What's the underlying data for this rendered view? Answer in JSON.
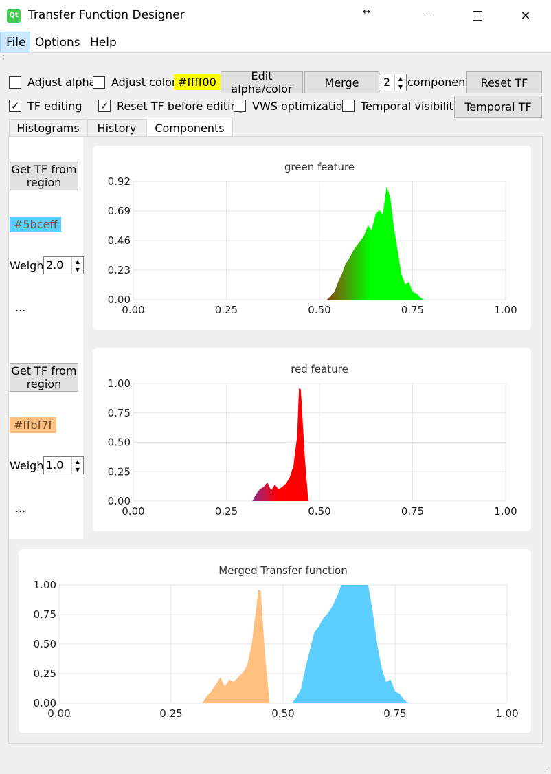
{
  "window": {
    "title": "Transfer Function Designer",
    "app_icon": "Qt",
    "resize_icon": "↔"
  },
  "menu": {
    "file": "File",
    "options": "Options",
    "help": "Help"
  },
  "toolbar": {
    "adjust_alpha": "Adjust alpha",
    "adjust_color": "Adjust color",
    "color_value": "#ffff00",
    "color_label": "#ffff00",
    "edit_btn": "Edit alpha/color",
    "merge_btn": "Merge",
    "components_value": "2",
    "components_label": "components",
    "reset_btn": "Reset TF",
    "tf_editing": "TF editing",
    "reset_before": "Reset TF before editing",
    "vws": "VWS optimization",
    "temporal_vis": "Temporal visibility",
    "temporal_btn": "Temporal TF"
  },
  "tabs": [
    "Histograms",
    "History",
    "Components"
  ],
  "components": [
    {
      "get_btn": "Get TF from region",
      "color": "#5bceff",
      "color_label": "#5bceff",
      "weight_label": "Weight",
      "weight": "2.0",
      "more": "..."
    },
    {
      "get_btn": "Get TF from region",
      "color": "#ffbf7f",
      "color_label": "#ffbf7f",
      "weight_label": "Weight",
      "weight": "1.0",
      "more": "..."
    }
  ],
  "chart_data": [
    {
      "type": "area",
      "title": "green feature",
      "xlim": [
        0,
        1
      ],
      "ylim": [
        0,
        0.92
      ],
      "xticks": [
        "0.00",
        "0.25",
        "0.50",
        "0.75",
        "1.00"
      ],
      "yticks": [
        "0.00",
        "0.23",
        "0.46",
        "0.69",
        "0.92"
      ],
      "fill": "gradient",
      "colors": [
        "#8b4513",
        "#00ff00"
      ],
      "x": [
        0.52,
        0.53,
        0.54,
        0.55,
        0.56,
        0.57,
        0.58,
        0.59,
        0.6,
        0.61,
        0.62,
        0.63,
        0.64,
        0.65,
        0.66,
        0.67,
        0.68,
        0.69,
        0.7,
        0.71,
        0.72,
        0.73,
        0.74,
        0.75,
        0.76,
        0.77,
        0.78
      ],
      "y": [
        0.0,
        0.03,
        0.06,
        0.14,
        0.2,
        0.28,
        0.32,
        0.38,
        0.42,
        0.46,
        0.5,
        0.58,
        0.54,
        0.66,
        0.7,
        0.66,
        0.88,
        0.8,
        0.56,
        0.38,
        0.2,
        0.12,
        0.14,
        0.06,
        0.05,
        0.02,
        0.0
      ]
    },
    {
      "type": "area",
      "title": "red feature",
      "xlim": [
        0,
        1
      ],
      "ylim": [
        0,
        1
      ],
      "xticks": [
        "0.00",
        "0.25",
        "0.50",
        "0.75",
        "1.00"
      ],
      "yticks": [
        "0.00",
        "0.25",
        "0.50",
        "0.75",
        "1.00"
      ],
      "fill": "gradient",
      "colors": [
        "#8b2b8b",
        "#ff0000"
      ],
      "x": [
        0.32,
        0.33,
        0.34,
        0.35,
        0.36,
        0.37,
        0.38,
        0.39,
        0.4,
        0.41,
        0.42,
        0.43,
        0.44,
        0.445,
        0.45,
        0.46,
        0.47
      ],
      "y": [
        0.0,
        0.06,
        0.1,
        0.12,
        0.16,
        0.09,
        0.14,
        0.1,
        0.12,
        0.15,
        0.2,
        0.3,
        0.55,
        0.96,
        0.95,
        0.4,
        0.0
      ]
    },
    {
      "type": "area",
      "title": "Merged Transfer function",
      "xlim": [
        0,
        1
      ],
      "ylim": [
        0,
        1
      ],
      "xticks": [
        "0.00",
        "0.25",
        "0.50",
        "0.75",
        "1.00"
      ],
      "yticks": [
        "0.00",
        "0.25",
        "0.50",
        "0.75",
        "1.00"
      ],
      "series": [
        {
          "color": "#ffbf7f",
          "x": [
            0.32,
            0.33,
            0.34,
            0.35,
            0.36,
            0.37,
            0.38,
            0.39,
            0.4,
            0.41,
            0.42,
            0.43,
            0.44,
            0.445,
            0.45,
            0.46,
            0.47
          ],
          "y": [
            0.0,
            0.06,
            0.1,
            0.16,
            0.22,
            0.14,
            0.2,
            0.18,
            0.22,
            0.26,
            0.32,
            0.5,
            0.8,
            0.96,
            0.95,
            0.4,
            0.0
          ]
        },
        {
          "color": "#5bceff",
          "x": [
            0.52,
            0.53,
            0.54,
            0.55,
            0.56,
            0.57,
            0.58,
            0.59,
            0.6,
            0.61,
            0.62,
            0.63,
            0.64,
            0.65,
            0.66,
            0.67,
            0.68,
            0.69,
            0.7,
            0.71,
            0.72,
            0.73,
            0.74,
            0.75,
            0.76,
            0.77,
            0.78
          ],
          "y": [
            0.0,
            0.05,
            0.12,
            0.3,
            0.45,
            0.6,
            0.65,
            0.72,
            0.76,
            0.82,
            0.9,
            1.0,
            1.0,
            1.0,
            1.0,
            1.0,
            1.0,
            1.0,
            0.78,
            0.5,
            0.3,
            0.18,
            0.2,
            0.1,
            0.08,
            0.03,
            0.0
          ]
        }
      ]
    }
  ]
}
